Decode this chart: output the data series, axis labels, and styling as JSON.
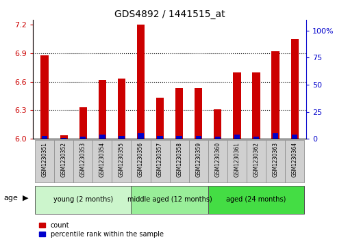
{
  "title": "GDS4892 / 1441515_at",
  "samples": [
    "GSM1230351",
    "GSM1230352",
    "GSM1230353",
    "GSM1230354",
    "GSM1230355",
    "GSM1230356",
    "GSM1230357",
    "GSM1230358",
    "GSM1230359",
    "GSM1230360",
    "GSM1230361",
    "GSM1230362",
    "GSM1230363",
    "GSM1230364"
  ],
  "count_values": [
    6.88,
    6.04,
    6.33,
    6.62,
    6.63,
    7.2,
    6.43,
    6.53,
    6.53,
    6.31,
    6.7,
    6.7,
    6.92,
    7.05
  ],
  "percentile_values": [
    3,
    1,
    2,
    4,
    3,
    5,
    3,
    3,
    3,
    2,
    4,
    2,
    5,
    4
  ],
  "base_value": 6.0,
  "ylim_left": [
    6.0,
    7.25
  ],
  "ylim_right": [
    0,
    110
  ],
  "yticks_left": [
    6.0,
    6.3,
    6.6,
    6.9,
    7.2
  ],
  "yticks_right": [
    0,
    25,
    50,
    75,
    100
  ],
  "ytick_labels_right": [
    "0",
    "25",
    "50",
    "75",
    "100%"
  ],
  "gridlines": [
    6.3,
    6.6,
    6.9
  ],
  "bar_color_red": "#cc0000",
  "bar_color_blue": "#0000cc",
  "red_bar_width": 0.4,
  "blue_bar_width": 0.3,
  "groups": [
    {
      "label": "young (2 months)",
      "start": 0,
      "end": 5,
      "color": "#ccf5cc"
    },
    {
      "label": "middle aged (12 months)",
      "start": 5,
      "end": 9,
      "color": "#99ee99"
    },
    {
      "label": "aged (24 months)",
      "start": 9,
      "end": 14,
      "color": "#44dd44"
    }
  ],
  "age_label": "age",
  "legend_red": "count",
  "legend_blue": "percentile rank within the sample",
  "plot_bg": "#ffffff",
  "left_tick_color": "#cc0000",
  "right_tick_color": "#0000cc",
  "label_box_color": "#d0d0d0",
  "title_fontsize": 10,
  "axis_fontsize": 8,
  "sample_fontsize": 5.5,
  "group_fontsize": 7,
  "legend_fontsize": 7
}
